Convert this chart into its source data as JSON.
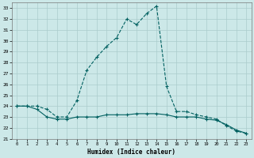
{
  "xlabel": "Humidex (Indice chaleur)",
  "background_color": "#cce8e8",
  "grid_color": "#aacccc",
  "line_color": "#006060",
  "xlim": [
    0,
    23
  ],
  "ylim": [
    21,
    33.5
  ],
  "yticks": [
    21,
    22,
    23,
    24,
    25,
    26,
    27,
    28,
    29,
    30,
    31,
    32,
    33
  ],
  "xticks": [
    0,
    1,
    2,
    3,
    4,
    5,
    6,
    7,
    8,
    9,
    10,
    11,
    12,
    13,
    14,
    15,
    16,
    17,
    18,
    19,
    20,
    21,
    22,
    23
  ],
  "series1_x": [
    0,
    1,
    2,
    3,
    4,
    5,
    6,
    7,
    8,
    9,
    10,
    11,
    12,
    13,
    14,
    15,
    16,
    17,
    18,
    19,
    20,
    21,
    22,
    23
  ],
  "series1_y": [
    24.0,
    24.0,
    24.0,
    23.7,
    23.0,
    23.0,
    24.5,
    27.3,
    28.5,
    29.5,
    30.3,
    32.0,
    31.5,
    32.5,
    33.2,
    25.8,
    23.5,
    23.5,
    23.2,
    23.0,
    22.8,
    22.2,
    21.7,
    21.5
  ],
  "series2_x": [
    0,
    1,
    2,
    3,
    4,
    5,
    6,
    7,
    8,
    9,
    10,
    11,
    12,
    13,
    14,
    15,
    16,
    17,
    18,
    19,
    20,
    21,
    22,
    23
  ],
  "series2_y": [
    24.0,
    24.0,
    23.7,
    23.0,
    22.8,
    22.8,
    23.0,
    23.0,
    23.0,
    23.2,
    23.2,
    23.2,
    23.3,
    23.3,
    23.3,
    23.2,
    23.0,
    23.0,
    23.0,
    22.8,
    22.7,
    22.3,
    21.8,
    21.5
  ]
}
